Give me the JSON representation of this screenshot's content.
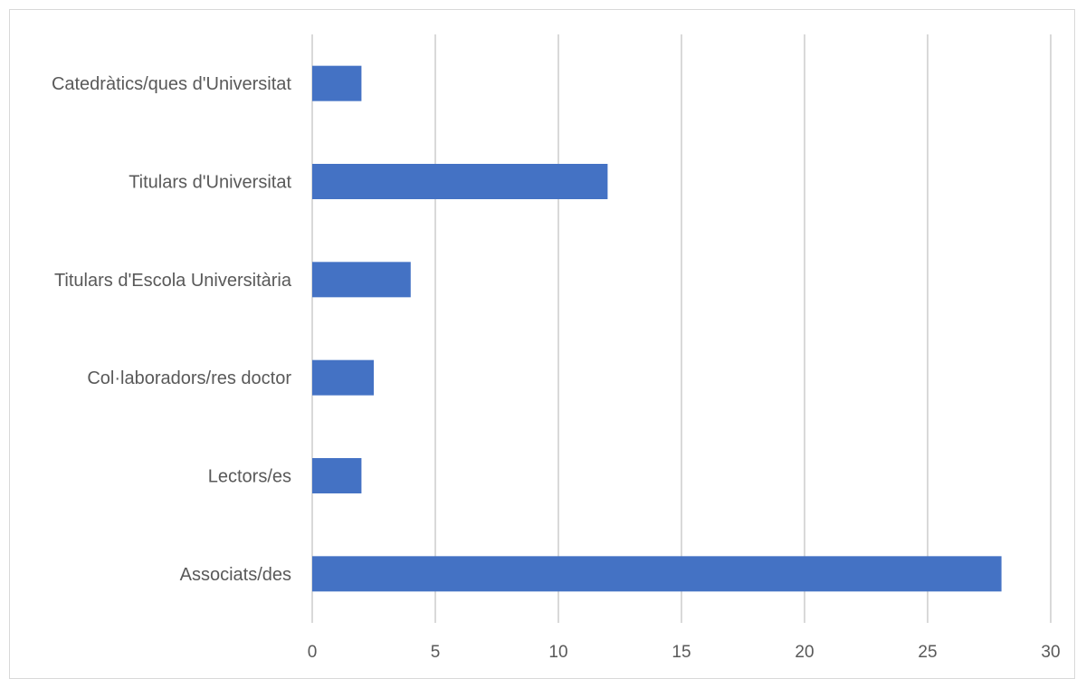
{
  "chart_data": {
    "type": "bar",
    "orientation": "horizontal",
    "categories": [
      "Catedràtics/ques d'Universitat",
      "Titulars d'Universitat",
      "Titulars d'Escola Universitària",
      "Col·laboradors/res doctor",
      "Lectors/es",
      "Associats/des"
    ],
    "values": [
      2,
      12,
      4,
      2.5,
      2,
      28
    ],
    "title": "",
    "xlabel": "",
    "ylabel": "",
    "xlim": [
      0,
      30
    ],
    "xticks": [
      "0",
      "5",
      "10",
      "15",
      "20",
      "25",
      "30"
    ],
    "grid": true,
    "legend": "none",
    "bar_color": "#4472C4",
    "grid_color": "#d9d9d9"
  }
}
